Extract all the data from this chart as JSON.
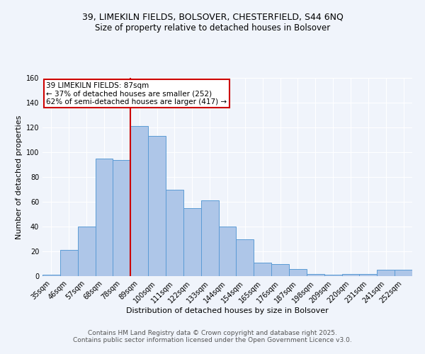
{
  "title_line1": "39, LIMEKILN FIELDS, BOLSOVER, CHESTERFIELD, S44 6NQ",
  "title_line2": "Size of property relative to detached houses in Bolsover",
  "xlabel": "Distribution of detached houses by size in Bolsover",
  "ylabel": "Number of detached properties",
  "categories": [
    "35sqm",
    "46sqm",
    "57sqm",
    "68sqm",
    "78sqm",
    "89sqm",
    "100sqm",
    "111sqm",
    "122sqm",
    "133sqm",
    "144sqm",
    "154sqm",
    "165sqm",
    "176sqm",
    "187sqm",
    "198sqm",
    "209sqm",
    "220sqm",
    "231sqm",
    "241sqm",
    "252sqm"
  ],
  "values": [
    1,
    21,
    40,
    95,
    94,
    121,
    113,
    70,
    55,
    61,
    40,
    30,
    11,
    10,
    6,
    2,
    1,
    2,
    2,
    5,
    5
  ],
  "bar_color": "#aec6e8",
  "bar_edge_color": "#5b9bd5",
  "vline_index": 5,
  "vline_color": "#cc0000",
  "ylim": [
    0,
    160
  ],
  "yticks": [
    0,
    20,
    40,
    60,
    80,
    100,
    120,
    140,
    160
  ],
  "annotation_text": "39 LIMEKILN FIELDS: 87sqm\n← 37% of detached houses are smaller (252)\n62% of semi-detached houses are larger (417) →",
  "annotation_box_color": "#ffffff",
  "annotation_border_color": "#cc0000",
  "footer_line1": "Contains HM Land Registry data © Crown copyright and database right 2025.",
  "footer_line2": "Contains public sector information licensed under the Open Government Licence v3.0.",
  "background_color": "#f0f4fb",
  "grid_color": "#ffffff",
  "title_fontsize": 9,
  "subtitle_fontsize": 8.5,
  "axis_label_fontsize": 8,
  "tick_fontsize": 7,
  "annotation_fontsize": 7.5,
  "footer_fontsize": 6.5
}
